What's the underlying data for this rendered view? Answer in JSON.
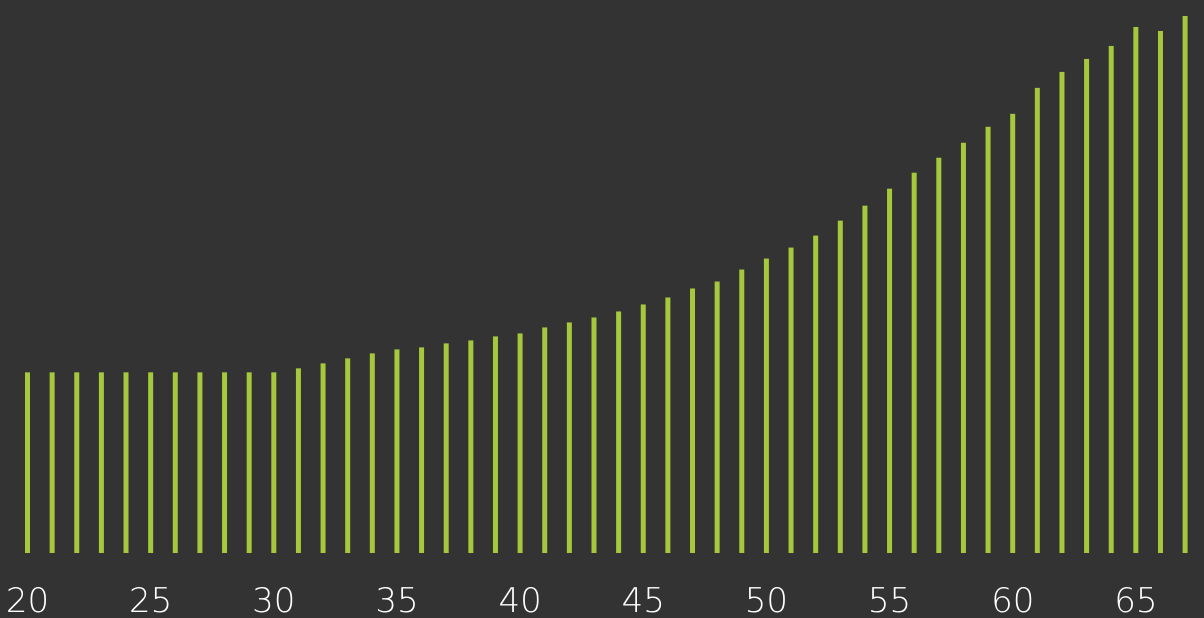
{
  "chart_data": {
    "type": "bar",
    "title": "",
    "xlabel": "",
    "ylabel": "",
    "x": [
      20,
      21,
      22,
      23,
      24,
      25,
      26,
      27,
      28,
      29,
      30,
      31,
      32,
      33,
      34,
      35,
      36,
      37,
      38,
      39,
      40,
      41,
      42,
      43,
      44,
      45,
      46,
      47,
      48,
      49,
      50,
      51,
      52,
      53,
      54,
      55,
      56,
      57,
      58,
      59,
      60,
      61,
      62,
      63,
      64,
      65,
      66,
      67
    ],
    "values": [
      18.1,
      18.1,
      18.1,
      18.1,
      18.1,
      18.1,
      18.1,
      18.1,
      18.1,
      18.1,
      18.1,
      18.5,
      19.0,
      19.5,
      20.0,
      20.4,
      20.6,
      21.0,
      21.3,
      21.7,
      22.0,
      22.6,
      23.1,
      23.6,
      24.2,
      24.9,
      25.6,
      26.5,
      27.2,
      28.4,
      29.5,
      30.6,
      31.8,
      33.3,
      34.8,
      36.5,
      38.1,
      39.6,
      41.1,
      42.7,
      44.0,
      46.6,
      48.2,
      49.5,
      50.8,
      52.7,
      52.3,
      53.8
    ],
    "xticks": [
      20,
      25,
      30,
      35,
      40,
      45,
      50,
      55,
      60,
      65
    ],
    "ylim": [
      0,
      55
    ],
    "grid": false,
    "colors": {
      "background": "#333333",
      "bar": "#a6c83c",
      "text": "#ffffff"
    }
  }
}
